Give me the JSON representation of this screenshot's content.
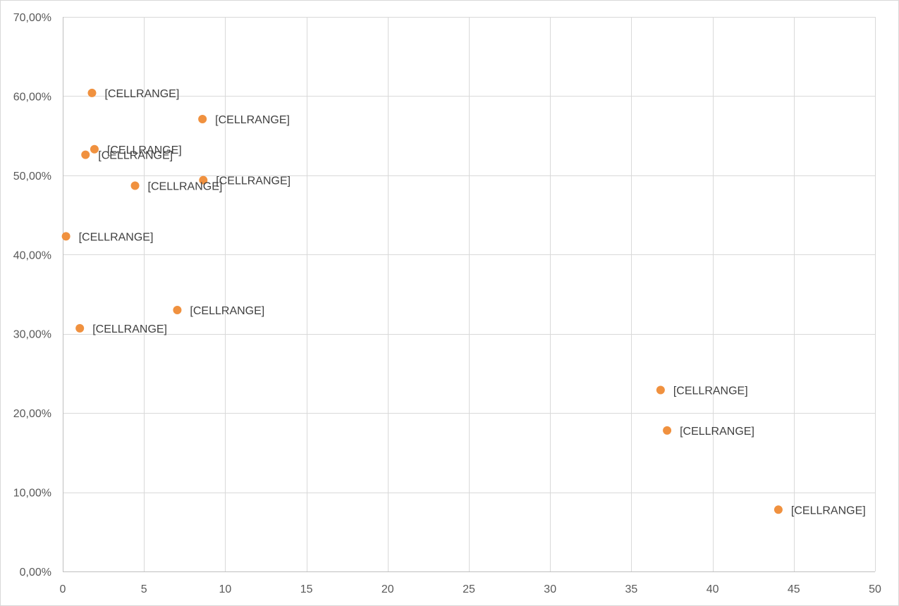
{
  "chart_data": {
    "type": "scatter",
    "title": "",
    "xlabel": "",
    "ylabel": "",
    "xlim": [
      0,
      50
    ],
    "ylim": [
      0,
      0.7
    ],
    "x_ticks": [
      0,
      5,
      10,
      15,
      20,
      25,
      30,
      35,
      40,
      45,
      50
    ],
    "x_tick_labels": [
      "0",
      "5",
      "10",
      "15",
      "20",
      "25",
      "30",
      "35",
      "40",
      "45",
      "50"
    ],
    "y_ticks": [
      0,
      0.1,
      0.2,
      0.3,
      0.4,
      0.5,
      0.6,
      0.7
    ],
    "y_tick_labels": [
      "0,00%",
      "10,00%",
      "20,00%",
      "30,00%",
      "40,00%",
      "50,00%",
      "60,00%",
      "70,00%"
    ],
    "grid": true,
    "legend": "none",
    "marker_color": "#f0913f",
    "series": [
      {
        "points": [
          {
            "x": 1.8,
            "y": 0.604,
            "label": "[CELLRANGE]"
          },
          {
            "x": 8.6,
            "y": 0.571,
            "label": "[CELLRANGE]"
          },
          {
            "x": 1.95,
            "y": 0.533,
            "label": "[CELLRANGE]"
          },
          {
            "x": 1.4,
            "y": 0.526,
            "label": "[CELLRANGE]"
          },
          {
            "x": 8.65,
            "y": 0.494,
            "label": "[CELLRANGE]"
          },
          {
            "x": 4.45,
            "y": 0.487,
            "label": "[CELLRANGE]"
          },
          {
            "x": 0.2,
            "y": 0.423,
            "label": "[CELLRANGE]"
          },
          {
            "x": 7.05,
            "y": 0.33,
            "label": "[CELLRANGE]"
          },
          {
            "x": 1.05,
            "y": 0.307,
            "label": "[CELLRANGE]"
          },
          {
            "x": 36.8,
            "y": 0.229,
            "label": "[CELLRANGE]"
          },
          {
            "x": 37.2,
            "y": 0.178,
            "label": "[CELLRANGE]"
          },
          {
            "x": 44.05,
            "y": 0.078,
            "label": "[CELLRANGE]"
          }
        ]
      }
    ]
  }
}
